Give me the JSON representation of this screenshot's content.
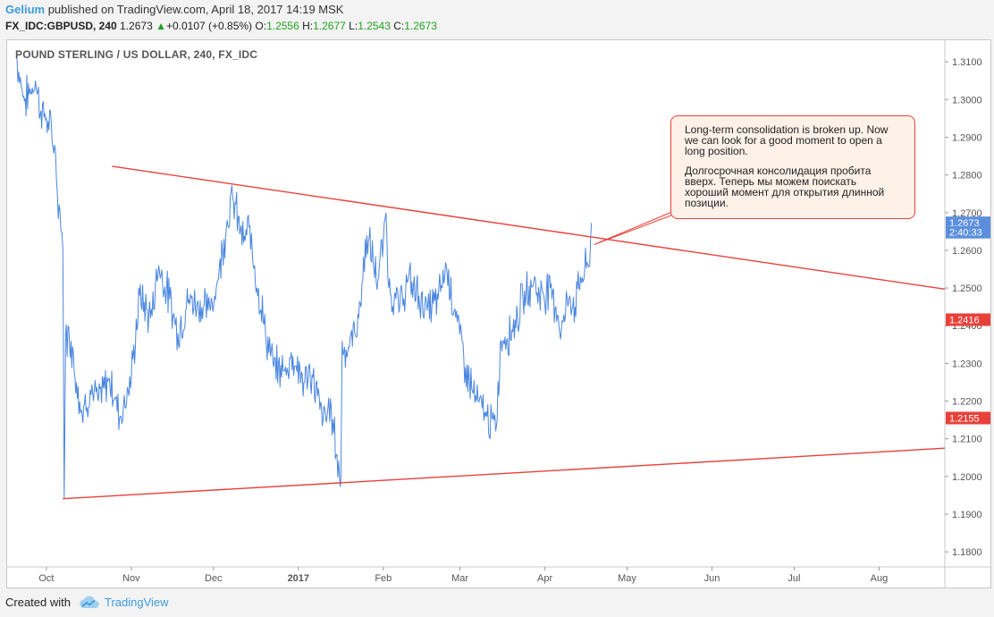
{
  "header": {
    "author": "Gelium",
    "published": "published on TradingView.com, April 18, 2017 14:19 MSK",
    "symbol": "FX_IDC:GBPUSD, 240",
    "last": "1.2673",
    "arrow": "▲",
    "change": "+0.0107 (+0.85%)",
    "o_label": "O:",
    "o_value": "1.2556",
    "h_label": "H:",
    "h_value": "1.2677",
    "l_label": "L:",
    "l_value": "1.2543",
    "c_label": "C:",
    "c_value": "1.2673"
  },
  "chart_title": "POUND STERLING / US DOLLAR, 240, FX_IDC",
  "note": {
    "en": "Long-term consolidation is broken up. Now we can look for a good moment to open a long position.",
    "ru": "Долгосрочная консолидация пробита вверх. Теперь мы можем поискать хороший момент для открытия длинной позиции."
  },
  "footer": {
    "created_with": "Created with",
    "brand": "TradingView"
  },
  "colors": {
    "series": "#4a86e0",
    "trendline": "#e8413a",
    "label_blue": "#5b8fde",
    "label_red": "#e8413a",
    "brand": "#3d9bdc"
  },
  "icons": [
    "tradingview-cloud-icon",
    "up-arrow-icon"
  ],
  "chart_data": {
    "type": "line",
    "title": "POUND STERLING / US DOLLAR, 240, FX_IDC",
    "x_tick_labels": [
      "Oct",
      "Nov",
      "Dec",
      "2017",
      "Feb",
      "Mar",
      "Apr",
      "May",
      "Jun",
      "Jul",
      "Aug"
    ],
    "y_tick_labels": [
      "1.3100",
      "1.3000",
      "1.2900",
      "1.2800",
      "1.2700",
      "1.2600",
      "1.2500",
      "1.2400",
      "1.2300",
      "1.2200",
      "1.2100",
      "1.2000",
      "1.1900",
      "1.1800"
    ],
    "ylim": [
      1.176,
      1.3155
    ],
    "xlim": [
      "2016-09-17",
      "2017-08-25"
    ],
    "axis_position": "right",
    "grid": false,
    "series": [
      {
        "points": [
          [
            "2016-09-20",
            1.3115
          ],
          [
            "2016-09-23",
            1.2995
          ],
          [
            "2016-09-27",
            1.305
          ],
          [
            "2016-09-29",
            1.297
          ],
          [
            "2016-10-01",
            1.295
          ],
          [
            "2016-10-04",
            1.288
          ],
          [
            "2016-10-05",
            1.275
          ],
          [
            "2016-10-06",
            1.27
          ],
          [
            "2016-10-07",
            1.2605
          ],
          [
            "2016-10-07T12",
            1.1942
          ],
          [
            "2016-10-08",
            1.238
          ],
          [
            "2016-10-10",
            1.236
          ],
          [
            "2016-10-12",
            1.225
          ],
          [
            "2016-10-14",
            1.217
          ],
          [
            "2016-10-17",
            1.223
          ],
          [
            "2016-10-20",
            1.22
          ],
          [
            "2016-10-24",
            1.226
          ],
          [
            "2016-10-28",
            1.216
          ],
          [
            "2016-11-01",
            1.226
          ],
          [
            "2016-11-04",
            1.248
          ],
          [
            "2016-11-08",
            1.242
          ],
          [
            "2016-11-11",
            1.256
          ],
          [
            "2016-11-15",
            1.247
          ],
          [
            "2016-11-18",
            1.238
          ],
          [
            "2016-11-22",
            1.247
          ],
          [
            "2016-11-25",
            1.246
          ],
          [
            "2016-11-29",
            1.244
          ],
          [
            "2016-12-02",
            1.25
          ],
          [
            "2016-12-06",
            1.268
          ],
          [
            "2016-12-08",
            1.274
          ],
          [
            "2016-12-12",
            1.262
          ],
          [
            "2016-12-14",
            1.266
          ],
          [
            "2016-12-16",
            1.256
          ],
          [
            "2016-12-20",
            1.238
          ],
          [
            "2016-12-23",
            1.229
          ],
          [
            "2016-12-27",
            1.228
          ],
          [
            "2016-12-30",
            1.232
          ],
          [
            "2017-01-03",
            1.225
          ],
          [
            "2017-01-06",
            1.227
          ],
          [
            "2017-01-10",
            1.215
          ],
          [
            "2017-01-13",
            1.218
          ],
          [
            "2017-01-16",
            1.2
          ],
          [
            "2017-01-16T12",
            1.1988
          ],
          [
            "2017-01-17",
            1.236
          ],
          [
            "2017-01-19",
            1.233
          ],
          [
            "2017-01-23",
            1.242
          ],
          [
            "2017-01-26",
            1.264
          ],
          [
            "2017-01-30",
            1.252
          ],
          [
            "2017-02-01",
            1.262
          ],
          [
            "2017-02-02",
            1.27
          ],
          [
            "2017-02-03",
            1.25
          ],
          [
            "2017-02-07",
            1.245
          ],
          [
            "2017-02-10",
            1.252
          ],
          [
            "2017-02-14",
            1.248
          ],
          [
            "2017-02-17",
            1.244
          ],
          [
            "2017-02-21",
            1.247
          ],
          [
            "2017-02-24",
            1.256
          ],
          [
            "2017-02-28",
            1.241
          ],
          [
            "2017-03-03",
            1.229
          ],
          [
            "2017-03-07",
            1.22
          ],
          [
            "2017-03-10",
            1.217
          ],
          [
            "2017-03-14",
            1.212
          ],
          [
            "2017-03-16",
            1.236
          ],
          [
            "2017-03-20",
            1.239
          ],
          [
            "2017-03-24",
            1.247
          ],
          [
            "2017-03-28",
            1.252
          ],
          [
            "2017-03-30",
            1.248
          ],
          [
            "2017-04-03",
            1.25
          ],
          [
            "2017-04-05",
            1.245
          ],
          [
            "2017-04-07",
            1.239
          ],
          [
            "2017-04-10",
            1.248
          ],
          [
            "2017-04-12",
            1.245
          ],
          [
            "2017-04-14",
            1.253
          ],
          [
            "2017-04-17",
            1.2556
          ],
          [
            "2017-04-18",
            1.2673
          ]
        ]
      }
    ],
    "trendlines": [
      {
        "from": [
          "2016-10-25",
          1.2823
        ],
        "to": [
          "2017-08-25",
          1.2497
        ]
      },
      {
        "from": [
          "2016-10-07",
          1.1941
        ],
        "to": [
          "2017-08-25",
          1.2075
        ]
      }
    ],
    "price_labels": [
      {
        "value": 1.2673,
        "text": "1.2673",
        "color": "blue"
      },
      {
        "value": 1.2648,
        "text": "2:40:33",
        "color": "blue"
      },
      {
        "value": 1.2416,
        "text": "1.2416",
        "color": "red"
      },
      {
        "value": 1.2155,
        "text": "1.2155",
        "color": "red"
      }
    ]
  }
}
